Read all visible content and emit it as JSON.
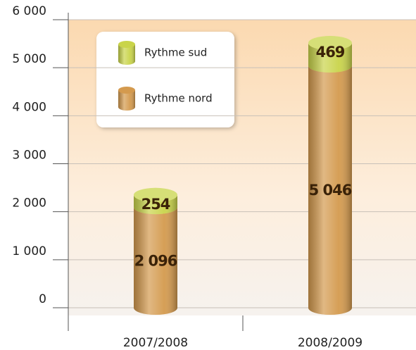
{
  "chart_data": {
    "type": "bar",
    "stacked": true,
    "categories": [
      "2007/2008",
      "2008/2009"
    ],
    "series": [
      {
        "name": "Rythme nord",
        "color": "#d49a4e",
        "values": [
          2096,
          5046
        ],
        "value_labels": [
          "2 096",
          "5 046"
        ]
      },
      {
        "name": "Rythme sud",
        "color": "#c9d44a",
        "values": [
          254,
          469
        ],
        "value_labels": [
          "254",
          "469"
        ]
      }
    ],
    "ylim": [
      0,
      6000
    ],
    "yticks": [
      {
        "value": 0,
        "label": "0"
      },
      {
        "value": 1000,
        "label": "1 000"
      },
      {
        "value": 2000,
        "label": "2 000"
      },
      {
        "value": 3000,
        "label": "3 000"
      },
      {
        "value": 4000,
        "label": "4 000"
      },
      {
        "value": 5000,
        "label": "5 000"
      },
      {
        "value": 6000,
        "label": "6 000"
      }
    ],
    "grid": true,
    "legend": "upper left"
  }
}
